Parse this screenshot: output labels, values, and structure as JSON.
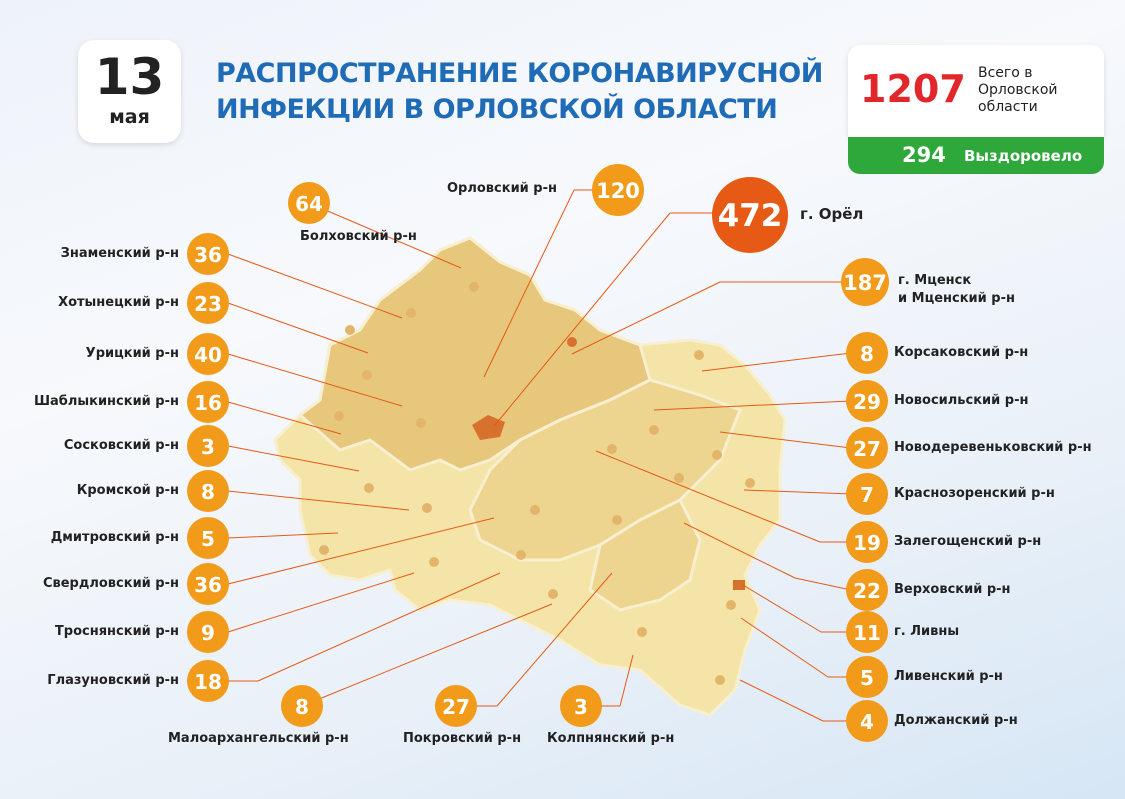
{
  "date": {
    "day": "13",
    "month": "мая"
  },
  "title": {
    "line1": "РАСПРОСТРАНЕНИЕ КОРОНАВИРУСНОЙ",
    "line2": "ИНФЕКЦИИ В ОРЛОВСКОЙ ОБЛАСТИ"
  },
  "totals": {
    "total_value": "1207",
    "total_label": "Всего в Орловской области",
    "recovered_value": "294",
    "recovered_label": "Выздоровело"
  },
  "colors": {
    "badge": "#f29a1a",
    "city_badge": "#e65a16",
    "map_dark": "#e6c77b",
    "map_mid": "#edd590",
    "map_light": "#f5e4a8",
    "orel_city": "#d9712e",
    "total": "#e1262c",
    "recovered": "#2ea83a",
    "title": "#1f6bb5"
  },
  "city": {
    "value": "472",
    "label": "г. Орёл"
  },
  "districts": [
    {
      "id": "bolkhov",
      "value": "64",
      "label": "Болховский р-н"
    },
    {
      "id": "orlovsky",
      "value": "120",
      "label": "Орловский р-н"
    },
    {
      "id": "mtsensk",
      "value": "187",
      "label_line1": "г. Мценск",
      "label_line2": "и Мценский р-н"
    },
    {
      "id": "znamen",
      "value": "36",
      "label": "Знаменский р-н"
    },
    {
      "id": "khotynets",
      "value": "23",
      "label": "Хотынецкий р-н"
    },
    {
      "id": "uritsk",
      "value": "40",
      "label": "Урицкий р-н"
    },
    {
      "id": "shablyk",
      "value": "16",
      "label": "Шаблыкинский р-н"
    },
    {
      "id": "soskovo",
      "value": "3",
      "label": "Сосковский р-н"
    },
    {
      "id": "kromy",
      "value": "8",
      "label": "Кромской р-н"
    },
    {
      "id": "dmitrovsk",
      "value": "5",
      "label": "Дмитровский р-н"
    },
    {
      "id": "sverdlov",
      "value": "36",
      "label": "Свердловский р-н"
    },
    {
      "id": "trosna",
      "value": "9",
      "label": "Троснянский р-н"
    },
    {
      "id": "glazunov",
      "value": "18",
      "label": "Глазуновский р-н"
    },
    {
      "id": "maloarkh",
      "value": "8",
      "label": "Малоархангельский р-н"
    },
    {
      "id": "pokrov",
      "value": "27",
      "label": "Покровский р-н"
    },
    {
      "id": "kolpna",
      "value": "3",
      "label": "Колпнянский р-н"
    },
    {
      "id": "korsakov",
      "value": "8",
      "label": "Корсаковский р-н"
    },
    {
      "id": "novosil",
      "value": "29",
      "label": "Новосильский р-н"
    },
    {
      "id": "novoderev",
      "value": "27",
      "label": "Новодеревеньковский р-н"
    },
    {
      "id": "krasnozor",
      "value": "7",
      "label": "Краснозоренский р-н"
    },
    {
      "id": "zalegosch",
      "value": "19",
      "label": "Залегощенский р-н"
    },
    {
      "id": "verkhov",
      "value": "22",
      "label": "Верховский р-н"
    },
    {
      "id": "livny_city",
      "value": "11",
      "label": "г. Ливны"
    },
    {
      "id": "livny",
      "value": "5",
      "label": "Ливенский р-н"
    },
    {
      "id": "dolzhansk",
      "value": "4",
      "label": "Должанский р-н"
    }
  ]
}
